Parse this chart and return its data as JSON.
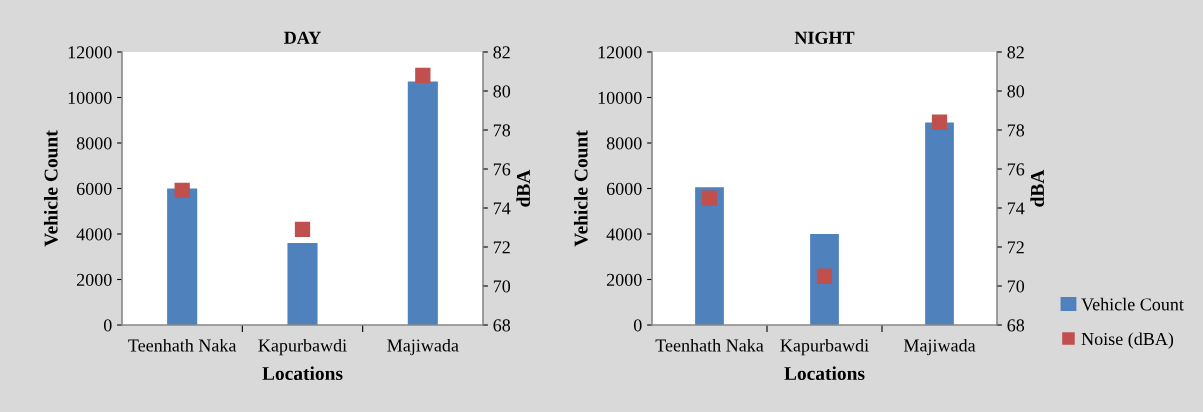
{
  "chart_data": [
    {
      "type": "bar",
      "title": "DAY",
      "xlabel": "Locations",
      "ylabel": "Vehicle Count",
      "y2label": "dBA",
      "categories": [
        "Teenhath Naka",
        "Kapurbawdi",
        "Majiwada"
      ],
      "series": [
        {
          "type": "bar",
          "color": "#4f81bd",
          "values": [
            6000,
            3600,
            10700
          ]
        },
        {
          "type": "scatter",
          "axis": "y2",
          "color": "#c0504d",
          "marker": "square",
          "values": [
            74.9,
            72.9,
            80.8
          ]
        }
      ],
      "ylim": [
        0,
        12000
      ],
      "yticks": [
        0,
        2000,
        4000,
        6000,
        8000,
        10000,
        12000
      ],
      "y2lim": [
        68,
        82
      ],
      "y2ticks": [
        68,
        70,
        72,
        74,
        76,
        78,
        80,
        82
      ],
      "grid": false,
      "legend": false
    },
    {
      "type": "bar",
      "title": "NIGHT",
      "xlabel": "Locations",
      "ylabel": "Vehicle Count",
      "y2label": "dBA",
      "categories": [
        "Teenhath Naka",
        "Kapurbawdi",
        "Majiwada"
      ],
      "series": [
        {
          "type": "bar",
          "name": "Vehicle Count",
          "color": "#4f81bd",
          "values": [
            6050,
            4000,
            8900
          ]
        },
        {
          "type": "scatter",
          "axis": "y2",
          "name": "Noise (dBA)",
          "color": "#c0504d",
          "marker": "square",
          "values": [
            74.5,
            70.5,
            78.4
          ]
        }
      ],
      "ylim": [
        0,
        12000
      ],
      "yticks": [
        0,
        2000,
        4000,
        6000,
        8000,
        10000,
        12000
      ],
      "y2lim": [
        68,
        82
      ],
      "y2ticks": [
        68,
        70,
        72,
        74,
        76,
        78,
        80,
        82
      ],
      "grid": false,
      "legend": "right"
    }
  ]
}
